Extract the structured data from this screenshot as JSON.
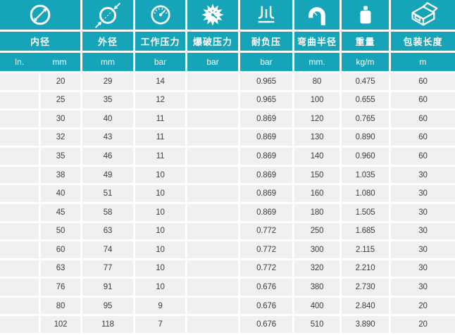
{
  "table": {
    "columns": [
      {
        "label": "内径",
        "icon": "inner-diameter-icon",
        "unit_in": "In.",
        "unit_mm": "mm"
      },
      {
        "label": "外径",
        "icon": "outer-diameter-icon",
        "unit": "mm"
      },
      {
        "label": "工作压力",
        "icon": "pressure-gauge-icon",
        "unit": "bar"
      },
      {
        "label": "爆破压力",
        "icon": "burst-pressure-icon",
        "unit": "bar"
      },
      {
        "label": "耐负压",
        "icon": "vacuum-resistance-icon",
        "unit": "bar"
      },
      {
        "label": "弯曲半径",
        "icon": "bend-radius-icon",
        "unit": "mm."
      },
      {
        "label": "重量",
        "icon": "weight-icon",
        "unit": "kg/m"
      },
      {
        "label": "包装长度",
        "icon": "package-length-icon",
        "unit": "m"
      }
    ],
    "rows": [
      [
        "",
        "20",
        "29",
        "14",
        "",
        "0.965",
        "80",
        "0.475",
        "60"
      ],
      [
        "",
        "25",
        "35",
        "12",
        "",
        "0.965",
        "100",
        "0.655",
        "60"
      ],
      [
        "",
        "30",
        "40",
        "11",
        "",
        "0.869",
        "120",
        "0.765",
        "60"
      ],
      [
        "",
        "32",
        "43",
        "11",
        "",
        "0.869",
        "130",
        "0.890",
        "60"
      ],
      [
        "",
        "35",
        "46",
        "11",
        "",
        "0.869",
        "140",
        "0.960",
        "60"
      ],
      [
        "",
        "38",
        "49",
        "10",
        "",
        "0.869",
        "150",
        "1.035",
        "30"
      ],
      [
        "",
        "40",
        "51",
        "10",
        "",
        "0.869",
        "160",
        "1.080",
        "30"
      ],
      [
        "",
        "45",
        "58",
        "10",
        "",
        "0.869",
        "180",
        "1.505",
        "30"
      ],
      [
        "",
        "50",
        "63",
        "10",
        "",
        "0.772",
        "250",
        "1.685",
        "30"
      ],
      [
        "",
        "60",
        "74",
        "10",
        "",
        "0.772",
        "300",
        "2.115",
        "30"
      ],
      [
        "",
        "63",
        "77",
        "10",
        "",
        "0.772",
        "320",
        "2.210",
        "30"
      ],
      [
        "",
        "76",
        "91",
        "10",
        "",
        "0.676",
        "380",
        "2.730",
        "30"
      ],
      [
        "",
        "80",
        "95",
        "9",
        "",
        "0.676",
        "400",
        "2.840",
        "20"
      ],
      [
        "",
        "102",
        "118",
        "7",
        "",
        "0.676",
        "510",
        "3.890",
        "20"
      ]
    ]
  },
  "colors": {
    "accent": "#16a5b8",
    "row_background": "#f0f0f1",
    "data_text": "#3e3e40",
    "header_text": "#ffffff"
  }
}
